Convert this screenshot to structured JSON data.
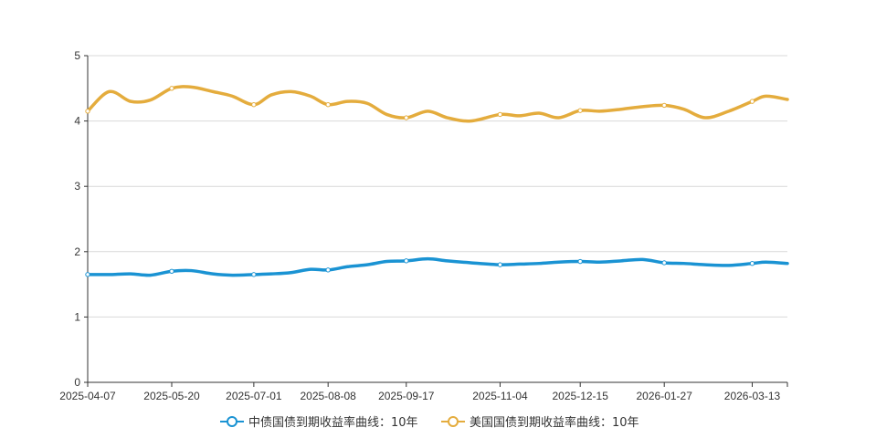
{
  "chart_data": {
    "type": "line",
    "title": "",
    "xlabel": "",
    "ylabel": "",
    "ylim": [
      0,
      5
    ],
    "yticks": [
      0,
      1,
      2,
      3,
      4,
      5
    ],
    "x_tick_labels": [
      "2025-04-07",
      "2025-05-20",
      "2025-07-01",
      "2025-08-08",
      "2025-09-17",
      "2025-11-04",
      "2025-12-15",
      "2026-01-27",
      "2026-03-13"
    ],
    "grid": "horizontal",
    "legend_position": "bottom",
    "x": [
      "2025-04-07",
      "2025-04-18",
      "2025-04-29",
      "2025-05-09",
      "2025-05-20",
      "2025-05-30",
      "2025-06-10",
      "2025-06-20",
      "2025-07-01",
      "2025-07-10",
      "2025-07-20",
      "2025-07-30",
      "2025-08-08",
      "2025-08-18",
      "2025-08-28",
      "2025-09-07",
      "2025-09-17",
      "2025-09-28",
      "2025-10-08",
      "2025-10-20",
      "2025-11-04",
      "2025-11-14",
      "2025-11-24",
      "2025-12-04",
      "2025-12-15",
      "2025-12-25",
      "2026-01-05",
      "2026-01-16",
      "2026-01-27",
      "2026-02-06",
      "2026-02-17",
      "2026-03-01",
      "2026-03-13",
      "2026-03-20",
      "2026-03-31"
    ],
    "series": [
      {
        "name": "中债国债到期收益率曲线：10年",
        "color": "#1a93d3",
        "values": [
          1.65,
          1.65,
          1.66,
          1.64,
          1.7,
          1.71,
          1.66,
          1.64,
          1.65,
          1.66,
          1.68,
          1.73,
          1.72,
          1.77,
          1.8,
          1.85,
          1.86,
          1.89,
          1.86,
          1.83,
          1.8,
          1.81,
          1.82,
          1.84,
          1.85,
          1.84,
          1.86,
          1.88,
          1.83,
          1.82,
          1.8,
          1.79,
          1.82,
          1.84,
          1.82
        ]
      },
      {
        "name": "美国国债到期收益率曲线：10年",
        "color": "#e4ac3d",
        "values": [
          4.15,
          4.45,
          4.3,
          4.32,
          4.5,
          4.52,
          4.45,
          4.38,
          4.25,
          4.4,
          4.45,
          4.38,
          4.25,
          4.3,
          4.27,
          4.1,
          4.05,
          4.15,
          4.05,
          4.0,
          4.1,
          4.08,
          4.12,
          4.05,
          4.16,
          4.15,
          4.18,
          4.22,
          4.24,
          4.18,
          4.05,
          4.15,
          4.3,
          4.38,
          4.33
        ]
      }
    ]
  }
}
